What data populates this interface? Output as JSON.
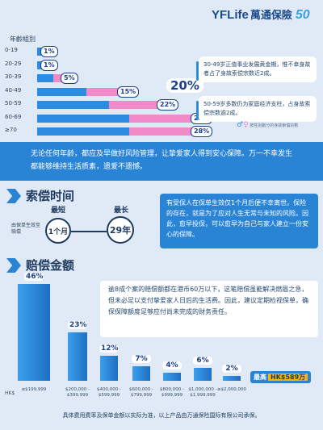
{
  "header": {
    "brand_en": "YFLife",
    "brand_cn": "萬通保險",
    "anniversary": "50"
  },
  "age_chart": {
    "title": "年齡組別",
    "rows": [
      {
        "label": "0-19",
        "pct": "1%",
        "value": 1
      },
      {
        "label": "20-29",
        "pct": "1%",
        "value": 1
      },
      {
        "label": "30-39",
        "pct": "5%",
        "value": 5
      },
      {
        "label": "40-49",
        "pct": "15%",
        "value": 15
      },
      {
        "label": "50-59",
        "pct": "22%",
        "value": 22
      },
      {
        "label": "60-69",
        "pct": "28%",
        "value": 28
      },
      {
        "label": "≥70",
        "pct": "28%",
        "value": 28
      }
    ],
    "callout_pct": "20%",
    "note_1": "30-49岁正值事业发展黄金期，惟不幸身故者占了身故索偿宗数近2成。",
    "note_2": "50-59岁多数仍为家庭经济支柱，占身故索偿宗数逾2成。",
    "legend": "按性別劃分的身故索償宗數",
    "colors": {
      "male": "#2d8ce0",
      "female": "#f08ac8"
    }
  },
  "banner": {
    "text": "无论任何年龄，都应及早做好风险管理，让挚爱家人得到安心保障。万一不幸发生都能够维持生活质素，遗爱不遗憾。"
  },
  "claim_time": {
    "title": "索偿时间",
    "subject": "由保单生效至赔偿",
    "shortest_label": "最短",
    "shortest_value": "1个月",
    "longest_label": "最长",
    "longest_value": "29年",
    "text": "有受保人在保单生效仅1个月后便不幸离世。保险的存在，就是为了应对人生无常与未知的风险。因此，愈早投保，可以愈早为自己与家人建立一份安心的保障。"
  },
  "payout": {
    "title": "赔偿金额",
    "text": "逾8成个案的赔偿额都在港币60万以下，这笔赔偿虽能解决燃眉之急，但未必足以支付挚爱家人日后的生活费。因此，建议定期检视保单，确保保障额度足够应付尚未完成的财务责任。",
    "currency": "HK$",
    "max_label": "最高",
    "max_value": "HK$589万",
    "bars": [
      {
        "category": "≤$199,999",
        "pct": "46%",
        "value": 46
      },
      {
        "category": "$200,000 - $399,999",
        "pct": "23%",
        "value": 23
      },
      {
        "category": "$400,000 - $599,999",
        "pct": "12%",
        "value": 12
      },
      {
        "category": "$600,000 - $799,999",
        "pct": "7%",
        "value": 7
      },
      {
        "category": "$800,000 - $999,999",
        "pct": "4%",
        "value": 4
      },
      {
        "category": "$1,000,000 - $1,999,999",
        "pct": "6%",
        "value": 6
      },
      {
        "category": "≥$2,000,000",
        "pct": "2%",
        "value": 2
      }
    ]
  },
  "footer": "具体费用费率及保单金额以实际为准，以上产品由万通保险国际有限公司承保。"
}
